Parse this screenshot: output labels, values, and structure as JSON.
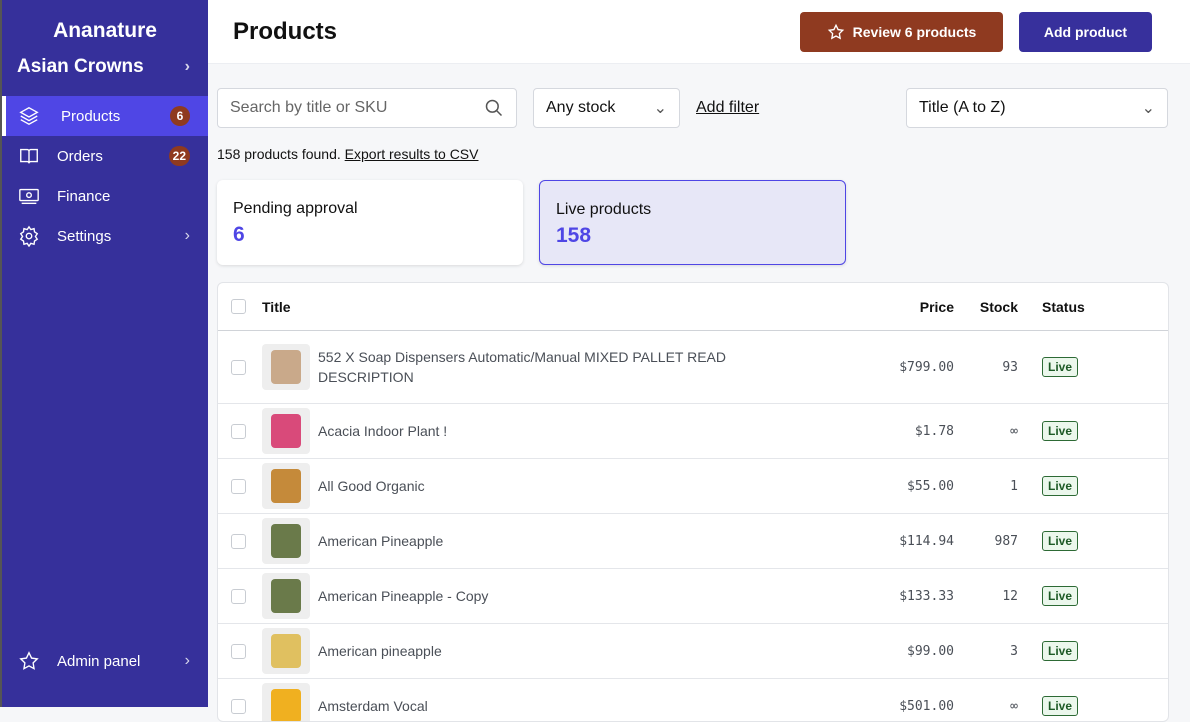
{
  "sidebar": {
    "brand": "Ananature",
    "store": "Asian Crowns",
    "items": [
      {
        "label": "Products",
        "badge": "6",
        "icon": "layers-icon"
      },
      {
        "label": "Orders",
        "badge": "22",
        "icon": "book-icon"
      },
      {
        "label": "Finance",
        "icon": "banknote-icon"
      },
      {
        "label": "Settings",
        "icon": "gear-icon"
      }
    ],
    "admin": "Admin panel"
  },
  "header": {
    "title": "Products",
    "review": "Review 6 products",
    "add": "Add product"
  },
  "filters": {
    "search_placeholder": "Search by title or SKU",
    "stock": "Any stock",
    "add_filter": "Add filter",
    "sort": "Title (A to Z)"
  },
  "results": {
    "count_text": "158 products found.",
    "export": "Export results to CSV"
  },
  "cards": [
    {
      "label": "Pending approval",
      "value": "6"
    },
    {
      "label": "Live products",
      "value": "158"
    }
  ],
  "table": {
    "columns": {
      "title": "Title",
      "price": "Price",
      "stock": "Stock",
      "status": "Status"
    },
    "rows": [
      {
        "title": "552 X Soap Dispensers Automatic/Manual MIXED PALLET READ DESCRIPTION",
        "price": "$799.00",
        "stock": "93",
        "status": "Live"
      },
      {
        "title": "Acacia Indoor Plant !",
        "price": "$1.78",
        "stock": "∞",
        "status": "Live"
      },
      {
        "title": "All Good Organic",
        "price": "$55.00",
        "stock": "1",
        "status": "Live"
      },
      {
        "title": "American Pineapple",
        "price": "$114.94",
        "stock": "987",
        "status": "Live"
      },
      {
        "title": "American Pineapple - Copy",
        "price": "$133.33",
        "stock": "12",
        "status": "Live"
      },
      {
        "title": "American pineapple",
        "price": "$99.00",
        "stock": "3",
        "status": "Live"
      },
      {
        "title": "Amsterdam Vocal",
        "price": "$501.00",
        "stock": "∞",
        "status": "Live"
      }
    ]
  },
  "colors": {
    "sidebar": "#36309b",
    "active": "#4f46e5",
    "review": "#8f3a20",
    "live": "#2d6a35"
  }
}
